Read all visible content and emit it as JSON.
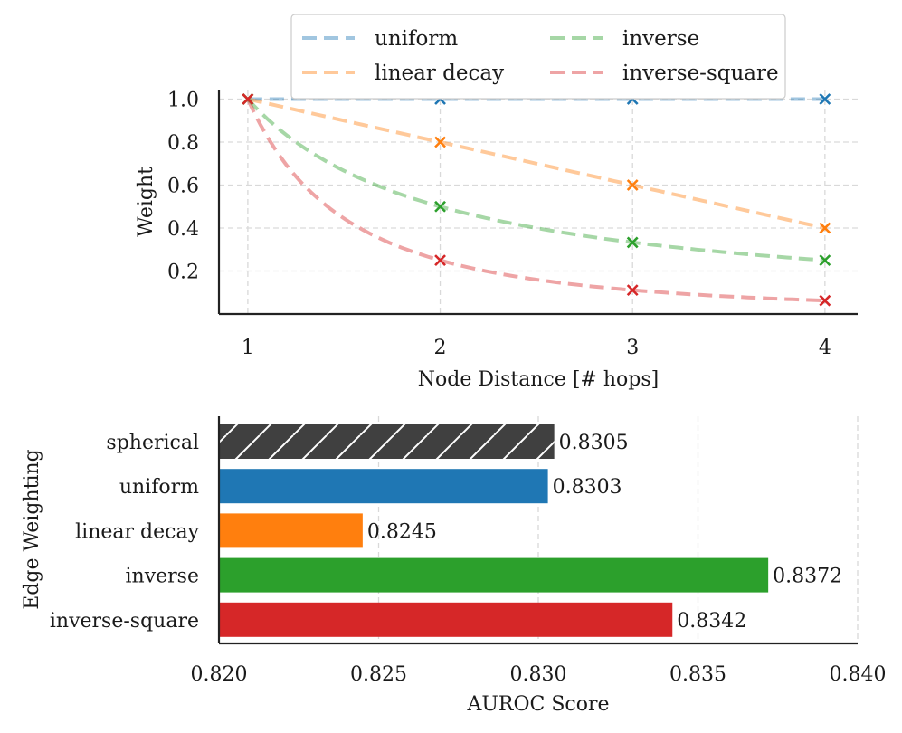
{
  "chart_data": [
    {
      "type": "line",
      "title": "",
      "xlabel": "Node Distance [# hops]",
      "ylabel": "Weight",
      "xlim": [
        0.85,
        4.17
      ],
      "ylim": [
        0.0,
        1.04
      ],
      "xticks": [
        "1",
        "2",
        "3",
        "4"
      ],
      "yticks": [
        "0.2",
        "0.4",
        "0.6",
        "0.8",
        "1.0"
      ],
      "x": [
        1,
        2,
        3,
        4
      ],
      "series": [
        {
          "name": "uniform",
          "color": "#1f77b4",
          "values": [
            1.0,
            1.0,
            1.0,
            1.0
          ],
          "curve": "uniform"
        },
        {
          "name": "linear decay",
          "color": "#ff7f0e",
          "values": [
            1.0,
            0.8,
            0.6,
            0.4
          ],
          "curve": "linear"
        },
        {
          "name": "inverse",
          "color": "#2ca02c",
          "values": [
            1.0,
            0.5,
            0.333,
            0.25
          ],
          "curve": "inverse"
        },
        {
          "name": "inverse-square",
          "color": "#d62728",
          "values": [
            1.0,
            0.25,
            0.111,
            0.0625
          ],
          "curve": "inverse-square"
        }
      ],
      "grid": true,
      "legend_position": "top-center"
    },
    {
      "type": "bar",
      "orientation": "horizontal",
      "title": "",
      "xlabel": "AUROC Score",
      "ylabel": "Edge Weighting",
      "xlim": [
        0.82,
        0.84
      ],
      "xticks": [
        "0.820",
        "0.825",
        "0.830",
        "0.835",
        "0.840"
      ],
      "categories": [
        "spherical",
        "uniform",
        "linear decay",
        "inverse",
        "inverse-square"
      ],
      "values": [
        0.8305,
        0.8303,
        0.8245,
        0.8372,
        0.8342
      ],
      "value_labels": [
        "0.8305",
        "0.8303",
        "0.8245",
        "0.8372",
        "0.8342"
      ],
      "colors": [
        "#404040",
        "#1f77b4",
        "#ff7f0e",
        "#2ca02c",
        "#d62728"
      ],
      "hatched": [
        true,
        false,
        false,
        false,
        false
      ],
      "grid": true
    }
  ]
}
